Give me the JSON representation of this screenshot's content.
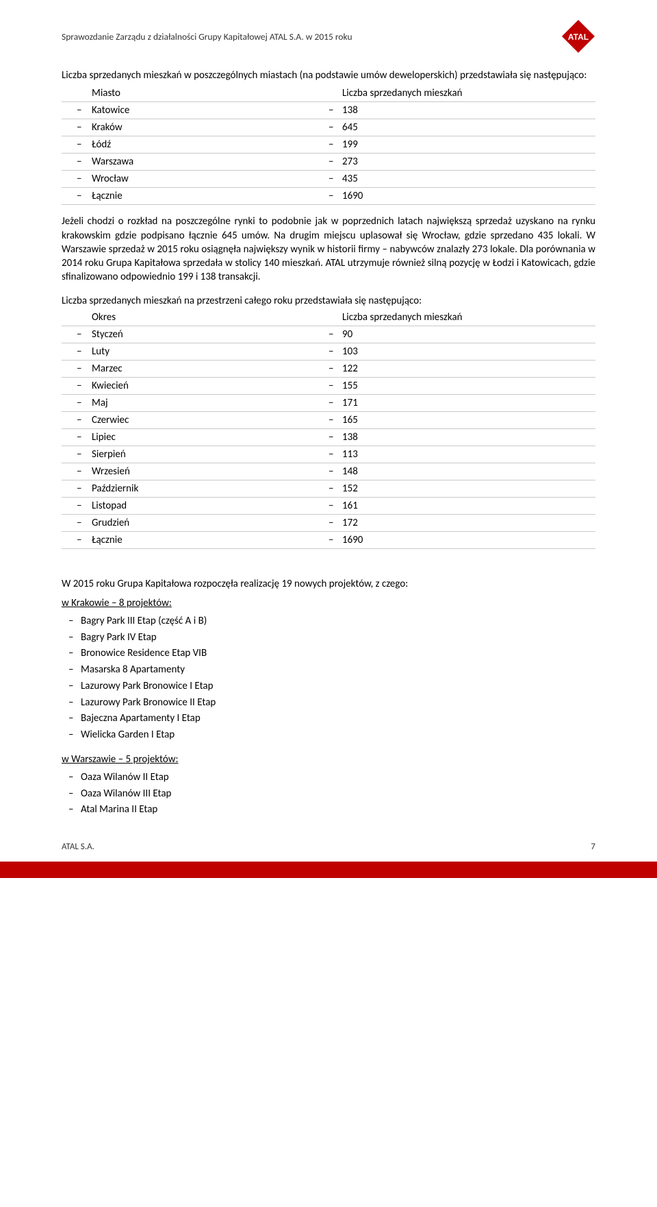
{
  "header": {
    "text": "Sprawozdanie Zarządu z działalności Grupy Kapitałowej  ATAL S.A. w 2015 roku",
    "logo": {
      "name": "ATAL",
      "fill": "#c00000",
      "text_color": "#ffffff"
    }
  },
  "intro1": "Liczba sprzedanych mieszkań w poszczególnych miastach (na podstawie umów deweloperskich) przedstawiała się następująco:",
  "cities_table": {
    "columns": [
      "Miasto",
      "Liczba sprzedanych mieszkań"
    ],
    "rows": [
      [
        "Katowice",
        "138"
      ],
      [
        "Kraków",
        "645"
      ],
      [
        "Łódź",
        "199"
      ],
      [
        "Warszawa",
        "273"
      ],
      [
        "Wrocław",
        "435"
      ],
      [
        "Łącznie",
        "1690"
      ]
    ]
  },
  "para1": "Jeżeli chodzi o rozkład na poszczególne rynki to podobnie jak w poprzednich latach największą sprzedaż uzyskano na rynku krakowskim gdzie podpisano łącznie 645 umów. Na drugim miejscu uplasował się Wrocław, gdzie sprzedano 435 lokali. W Warszawie sprzedaż w 2015 roku osiągnęła największy wynik w historii firmy – nabywców znalazły 273 lokale. Dla porównania w 2014 roku Grupa Kapitałowa sprzedała w stolicy 140 mieszkań. ATAL utrzymuje również silną pozycję w Łodzi i Katowicach, gdzie sfinalizowano odpowiednio 199 i 138 transakcji.",
  "intro2": "Liczba sprzedanych mieszkań na przestrzeni całego roku przedstawiała się następująco:",
  "months_table": {
    "columns": [
      "Okres",
      "Liczba sprzedanych mieszkań"
    ],
    "rows": [
      [
        "Styczeń",
        "90"
      ],
      [
        "Luty",
        "103"
      ],
      [
        "Marzec",
        "122"
      ],
      [
        "Kwiecień",
        "155"
      ],
      [
        "Maj",
        "171"
      ],
      [
        "Czerwiec",
        "165"
      ],
      [
        "Lipiec",
        "138"
      ],
      [
        "Sierpień",
        "113"
      ],
      [
        "Wrzesień",
        "148"
      ],
      [
        "Październik",
        "152"
      ],
      [
        "Listopad",
        "161"
      ],
      [
        "Grudzień",
        "172"
      ],
      [
        "Łącznie",
        "1690"
      ]
    ]
  },
  "projects_intro": "W 2015 roku Grupa Kapitałowa rozpoczęła realizację 19 nowych projektów, z czego:",
  "krakow": {
    "heading": "w Krakowie – 8 projektów:",
    "items": [
      "Bagry Park III Etap (część A i B)",
      "Bagry Park IV Etap",
      "Bronowice Residence Etap VIB",
      "Masarska 8 Apartamenty",
      "Lazurowy Park Bronowice I Etap",
      "Lazurowy Park Bronowice II Etap",
      "Bajeczna Apartamenty I Etap",
      "Wielicka Garden I Etap"
    ]
  },
  "warszawa": {
    "heading": "w Warszawie – 5 projektów:",
    "items": [
      "Oaza Wilanów II Etap",
      "Oaza Wilanów III Etap",
      "Atal Marina II Etap"
    ]
  },
  "footer": {
    "company": "ATAL S.A.",
    "page": "7"
  },
  "colors": {
    "rule": "#c9c9c9",
    "bar": "#c00000",
    "text": "#000000"
  }
}
